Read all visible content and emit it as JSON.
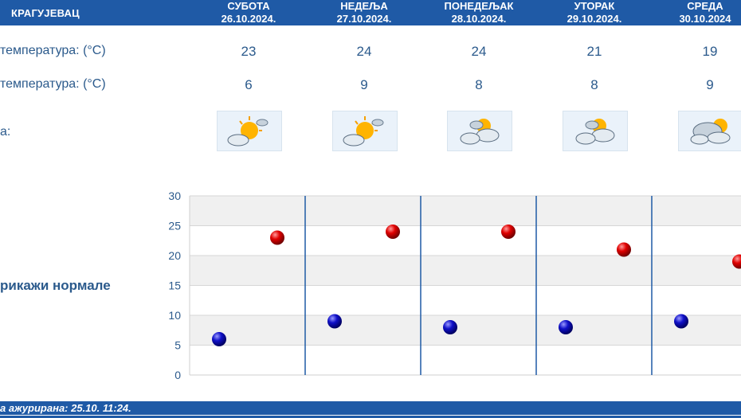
{
  "header": {
    "city": "КРАГУЈЕВАЦ",
    "days": [
      {
        "name": "СУБОТА",
        "date": "26.10.2024."
      },
      {
        "name": "НЕДЕЉА",
        "date": "27.10.2024."
      },
      {
        "name": "ПОНЕДЕЉАК",
        "date": "28.10.2024."
      },
      {
        "name": "УТОРАК",
        "date": "29.10.2024."
      },
      {
        "name": "СРЕДА",
        "date": "30.10.2024"
      }
    ]
  },
  "rows": {
    "max_label": "температура: (°C)",
    "min_label": "температура: (°C)",
    "weather_label": "а:",
    "max_values": [
      "23",
      "24",
      "24",
      "21",
      "19"
    ],
    "min_values": [
      "6",
      "9",
      "8",
      "8",
      "9"
    ],
    "icons": [
      "sun-cloud-icon",
      "sun-cloud-icon",
      "cloud-sun-icon",
      "cloud-sun-icon",
      "cloudy-sun-icon"
    ]
  },
  "normals_link": "рикажи нормале",
  "footer": {
    "text": "а ажурирана:  25.10. 11:24."
  },
  "colors": {
    "header": "#1f5aa6",
    "max_point": "#e00000",
    "min_point": "#1010c8",
    "grid_band": "#f0f0f0",
    "day_divider": "#1f5aa6"
  },
  "chart_data": {
    "type": "scatter",
    "categories": [
      "26.10.2024.",
      "27.10.2024.",
      "28.10.2024.",
      "29.10.2024.",
      "30.10.2024"
    ],
    "series": [
      {
        "values": [
          23,
          24,
          24,
          21,
          19
        ]
      },
      {
        "values": [
          6,
          9,
          8,
          8,
          9
        ]
      }
    ],
    "ylim": [
      0,
      30
    ],
    "yticks": [
      "0",
      "5",
      "10",
      "15",
      "20",
      "25",
      "30"
    ],
    "grid": true
  }
}
